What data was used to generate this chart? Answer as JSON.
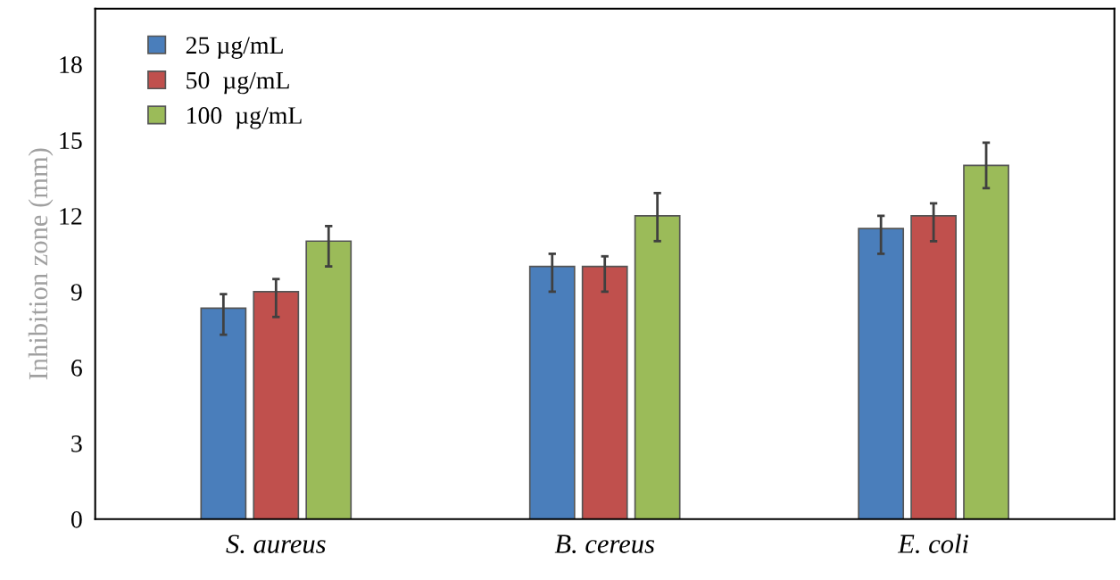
{
  "chart_data": {
    "type": "bar",
    "ylabel": "Inhibition zone (mm)",
    "categories": [
      "S. aureus",
      "B. cereus",
      "E. coli"
    ],
    "series": [
      {
        "name": "25 µg/mL",
        "color": "#4a7ebb",
        "values": [
          8.35,
          10.0,
          11.5
        ],
        "errors": [
          [
            7.3,
            8.9
          ],
          [
            9.0,
            10.5
          ],
          [
            10.5,
            12.0
          ]
        ]
      },
      {
        "name": "50  µg/mL",
        "color": "#c0504d",
        "values": [
          9.0,
          10.0,
          12.0
        ],
        "errors": [
          [
            8.0,
            9.5
          ],
          [
            9.0,
            10.4
          ],
          [
            11.0,
            12.5
          ]
        ]
      },
      {
        "name": "100  µg/mL",
        "color": "#9bbb59",
        "values": [
          11.0,
          12.0,
          14.0
        ],
        "errors": [
          [
            10.0,
            11.6
          ],
          [
            11.0,
            12.9
          ],
          [
            13.1,
            14.9
          ]
        ]
      }
    ],
    "ylim": [
      0,
      20.2
    ],
    "yticks": [
      0,
      3,
      6,
      9,
      12,
      15,
      18
    ],
    "grid": false,
    "legend": "top left"
  }
}
